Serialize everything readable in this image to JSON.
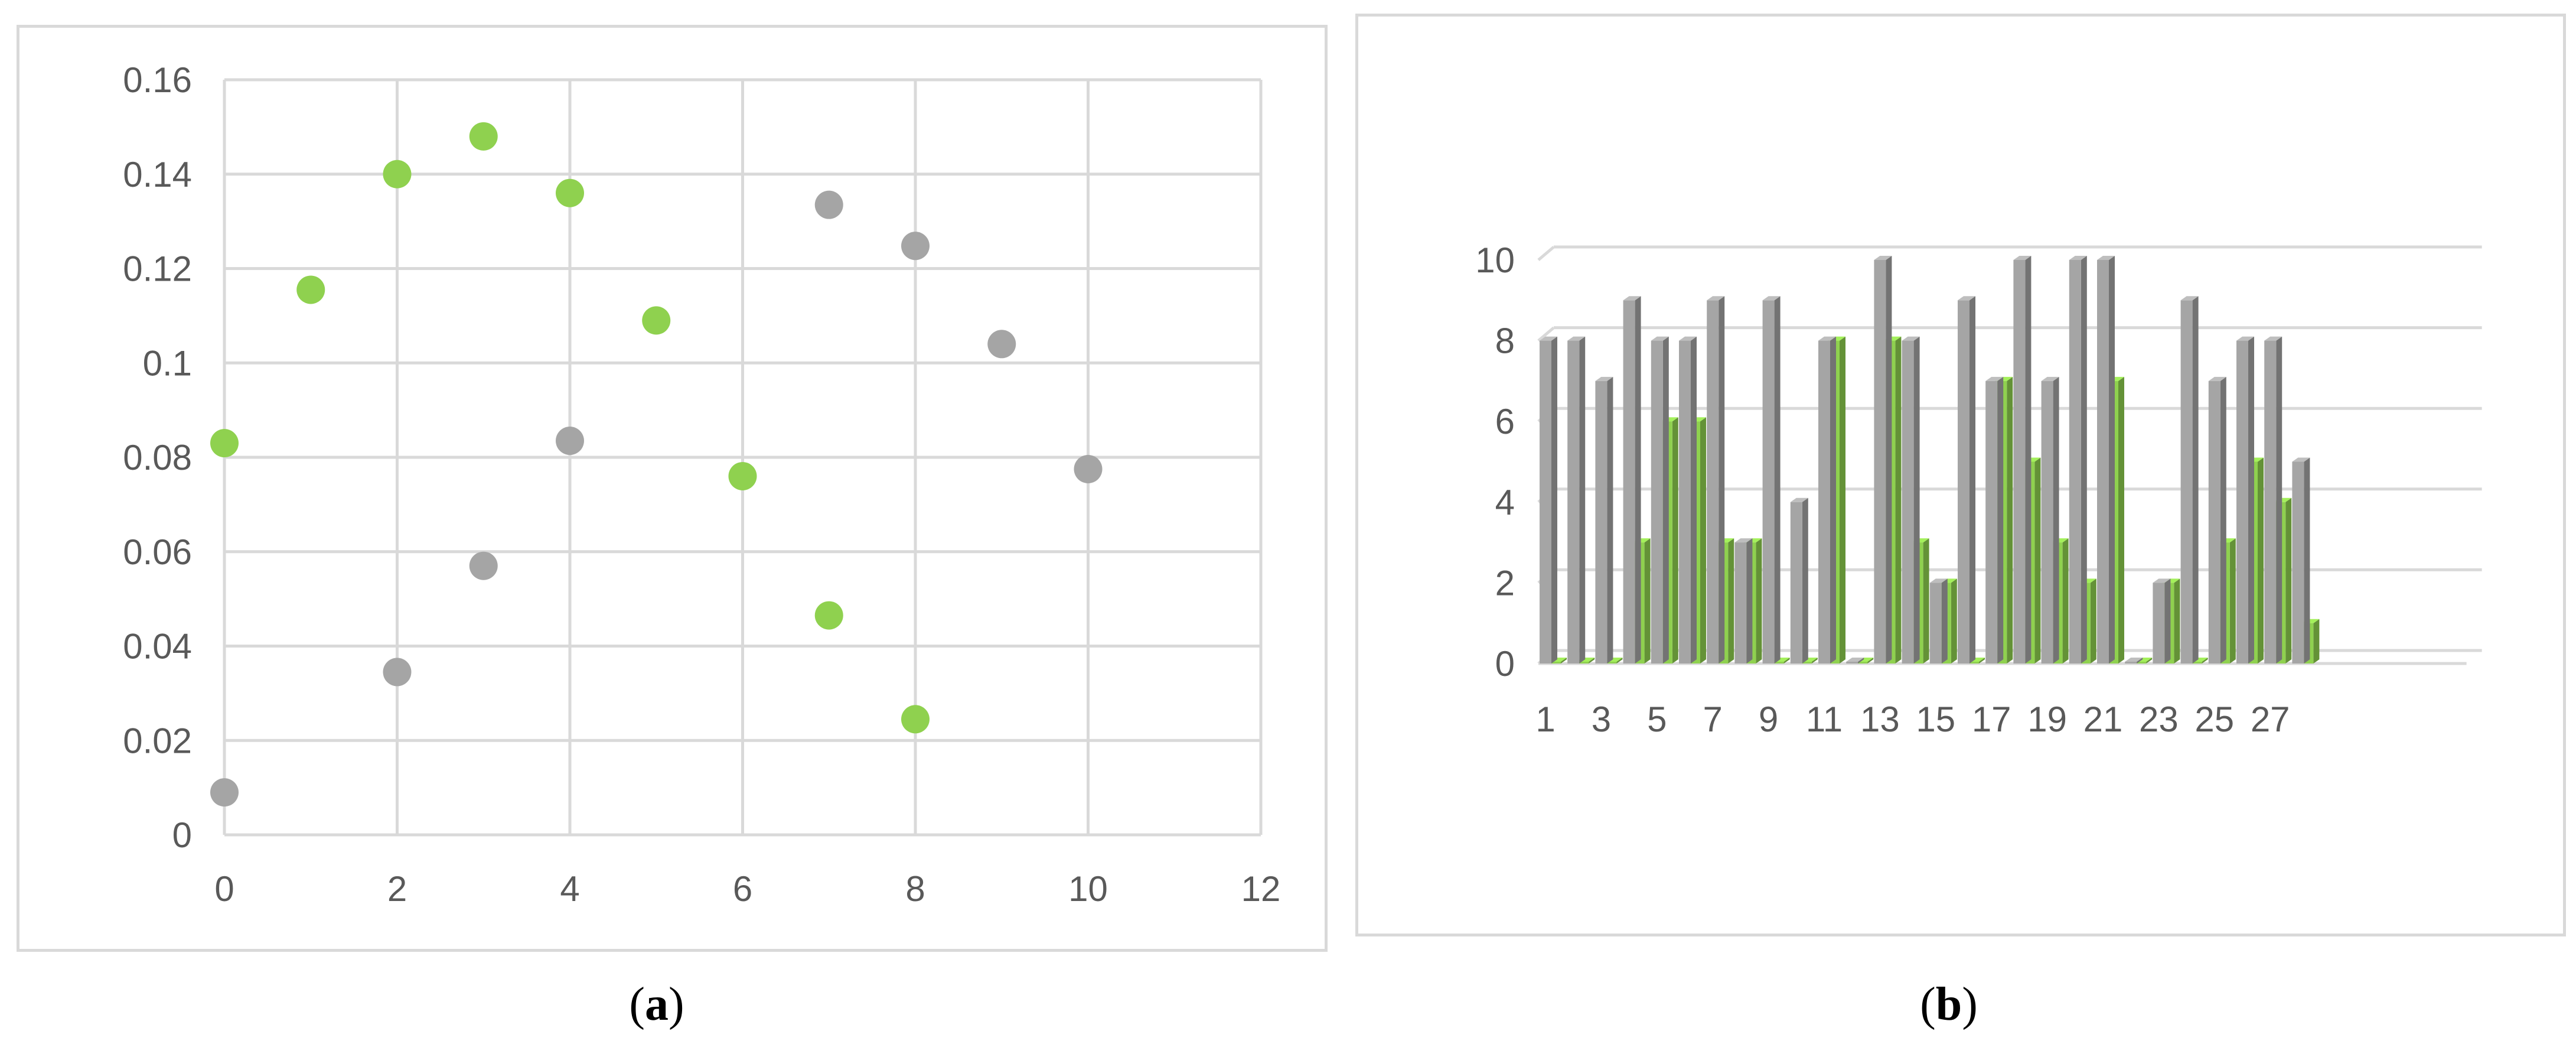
{
  "captions": {
    "a": "a",
    "b": "b"
  },
  "colors": {
    "green": "#8fd14f",
    "gray": "#a5a5a5",
    "grid": "#d9d9d9",
    "text": "#595959"
  },
  "chart_data": [
    {
      "id": "a",
      "type": "scatter",
      "title": "",
      "xlabel": "",
      "ylabel": "",
      "xlim": [
        0,
        12
      ],
      "ylim": [
        0,
        0.16
      ],
      "x_ticks": [
        "0",
        "2",
        "4",
        "6",
        "8",
        "10",
        "12"
      ],
      "y_ticks": [
        "0",
        "0.02",
        "0.04",
        "0.06",
        "0.08",
        "0.1",
        "0.12",
        "0.14",
        "0.16"
      ],
      "grid": true,
      "legend": "none",
      "series": [
        {
          "color": "#8fd14f",
          "points": [
            [
              0,
              0.083
            ],
            [
              1,
              0.1155
            ],
            [
              2,
              0.14
            ],
            [
              3,
              0.148
            ],
            [
              4,
              0.136
            ],
            [
              5,
              0.109
            ],
            [
              6,
              0.076
            ],
            [
              7,
              0.0465
            ],
            [
              8,
              0.0245
            ]
          ]
        },
        {
          "color": "#a5a5a5",
          "points": [
            [
              0,
              0.009
            ],
            [
              2,
              0.0345
            ],
            [
              3,
              0.057
            ],
            [
              4,
              0.0835
            ],
            [
              7,
              0.1335
            ],
            [
              8,
              0.1248
            ],
            [
              9,
              0.104
            ],
            [
              10,
              0.0775
            ]
          ]
        }
      ]
    },
    {
      "id": "b",
      "type": "bar",
      "title": "",
      "xlabel": "",
      "ylabel": "",
      "ylim": [
        0,
        10
      ],
      "y_ticks": [
        "0",
        "2",
        "4",
        "6",
        "8",
        "10"
      ],
      "categories": [
        "1",
        "2",
        "3",
        "4",
        "5",
        "6",
        "7",
        "8",
        "9",
        "10",
        "11",
        "12",
        "13",
        "14",
        "15",
        "16",
        "17",
        "18",
        "19",
        "20",
        "21",
        "22",
        "23",
        "24",
        "25",
        "26",
        "27",
        "28"
      ],
      "x_tick_labels": [
        "1",
        "3",
        "5",
        "7",
        "9",
        "11",
        "13",
        "15",
        "17",
        "19",
        "21",
        "23",
        "25",
        "27"
      ],
      "grid": true,
      "legend": "none",
      "series": [
        {
          "color": "#a5a5a5",
          "values": [
            8,
            8,
            7,
            9,
            8,
            8,
            9,
            3,
            9,
            4,
            8,
            0,
            10,
            8,
            2,
            9,
            7,
            10,
            7,
            10,
            10,
            0,
            2,
            9,
            7,
            8,
            8,
            5
          ]
        },
        {
          "color": "#8fd14f",
          "values": [
            0,
            0,
            0,
            3,
            6,
            6,
            3,
            3,
            0,
            0,
            8,
            0,
            8,
            3,
            2,
            0,
            7,
            5,
            3,
            2,
            7,
            0,
            2,
            0,
            3,
            5,
            4,
            1
          ]
        }
      ]
    }
  ]
}
